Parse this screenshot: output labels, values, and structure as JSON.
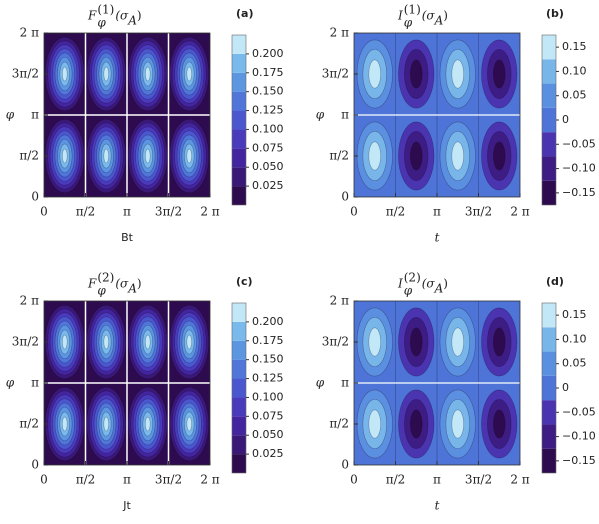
{
  "chart_data": [
    {
      "type": "contour",
      "panel_label": "(a)",
      "title": [
        "F",
        "(1)",
        "φ",
        "(σ",
        "A",
        ")"
      ],
      "xlabel": "Bt",
      "ylabel": "φ",
      "xlim": [
        0,
        6.2832
      ],
      "ylim": [
        0,
        6.2832
      ],
      "xticks": [
        0,
        {
          "value": 1.5708,
          "label": "π/2"
        },
        {
          "value": 3.1416,
          "label": "π"
        },
        {
          "value": 4.7124,
          "label": "3π/2"
        },
        {
          "value": 6.2832,
          "label": "2 π"
        }
      ],
      "yticks": [
        0,
        {
          "value": 1.5708,
          "label": "π/2"
        },
        {
          "value": 3.1416,
          "label": "π"
        },
        {
          "value": 4.7124,
          "label": "3π/2"
        },
        {
          "value": 6.2832,
          "label": "2 π"
        }
      ],
      "clim": [
        0,
        0.225
      ],
      "cticks": [
        0.025,
        {
          "value": 0.05,
          "label": "0.050"
        },
        0.075,
        {
          "value": 0.1,
          "label": "0.100"
        },
        0.125,
        {
          "value": 0.15,
          "label": "0.150"
        },
        0.175,
        {
          "value": 0.2,
          "label": "0.200"
        }
      ],
      "colors": [
        "#2d0b4e",
        "#3a1877",
        "#43259f",
        "#4a3bbd",
        "#4a57cf",
        "#4f76d8",
        "#5c96e1",
        "#7ab9eb",
        "#c2e8f8"
      ],
      "diverging": false
    },
    {
      "type": "contour",
      "panel_label": "(b)",
      "title": [
        "I",
        "(1)",
        "φ",
        "(σ",
        "A",
        ")"
      ],
      "xlabel": "t",
      "ylabel": "φ",
      "xlim": [
        0,
        6.2832
      ],
      "ylim": [
        0,
        6.2832
      ],
      "xticks": [
        0,
        {
          "value": 1.5708,
          "label": "π/2"
        },
        {
          "value": 3.1416,
          "label": "π"
        },
        {
          "value": 4.7124,
          "label": "3π/2"
        },
        {
          "value": 6.2832,
          "label": "2 π"
        }
      ],
      "yticks": [
        0,
        {
          "value": 1.5708,
          "label": "π/2"
        },
        {
          "value": 3.1416,
          "label": "π"
        },
        {
          "value": 4.7124,
          "label": "3π/2"
        },
        {
          "value": 6.2832,
          "label": "2 π"
        }
      ],
      "clim": [
        -0.175,
        0.175
      ],
      "cticks": [
        {
          "value": -0.15,
          "label": "−0.15"
        },
        {
          "value": -0.1,
          "label": "−0.10"
        },
        {
          "value": -0.05,
          "label": "−0.05"
        },
        0,
        0.05,
        {
          "value": 0.1,
          "label": "0.10"
        },
        0.15
      ],
      "colors": [
        "#2d0b4e",
        "#3d1c84",
        "#4a34b0",
        "#4d74d6",
        "#5b8fdf",
        "#78b6ea",
        "#c2e8f8"
      ],
      "diverging": true
    },
    {
      "type": "contour",
      "panel_label": "(c)",
      "title": [
        "F",
        "(2)",
        "φ",
        "(σ",
        "A",
        ")"
      ],
      "xlabel": "Jt",
      "ylabel": "φ",
      "xlim": [
        0,
        6.2832
      ],
      "ylim": [
        0,
        6.2832
      ],
      "xticks": [
        0,
        {
          "value": 1.5708,
          "label": "π/2"
        },
        {
          "value": 3.1416,
          "label": "π"
        },
        {
          "value": 4.7124,
          "label": "3π/2"
        },
        {
          "value": 6.2832,
          "label": "2 π"
        }
      ],
      "yticks": [
        0,
        {
          "value": 1.5708,
          "label": "π/2"
        },
        {
          "value": 3.1416,
          "label": "π"
        },
        {
          "value": 4.7124,
          "label": "3π/2"
        },
        {
          "value": 6.2832,
          "label": "2 π"
        }
      ],
      "clim": [
        0,
        0.225
      ],
      "cticks": [
        0.025,
        {
          "value": 0.05,
          "label": "0.050"
        },
        0.075,
        {
          "value": 0.1,
          "label": "0.100"
        },
        0.125,
        {
          "value": 0.15,
          "label": "0.150"
        },
        0.175,
        {
          "value": 0.2,
          "label": "0.200"
        }
      ],
      "colors": [
        "#2d0b4e",
        "#3a1877",
        "#43259f",
        "#4a3bbd",
        "#4a57cf",
        "#4f76d8",
        "#5c96e1",
        "#7ab9eb",
        "#c2e8f8"
      ],
      "diverging": false
    },
    {
      "type": "contour",
      "panel_label": "(d)",
      "title": [
        "I",
        "(2)",
        "φ",
        "(σ",
        "A",
        ")"
      ],
      "xlabel": "t",
      "ylabel": "φ",
      "xlim": [
        0,
        6.2832
      ],
      "ylim": [
        0,
        6.2832
      ],
      "xticks": [
        0,
        {
          "value": 1.5708,
          "label": "π/2"
        },
        {
          "value": 3.1416,
          "label": "π"
        },
        {
          "value": 4.7124,
          "label": "3π/2"
        },
        {
          "value": 6.2832,
          "label": "2 π"
        }
      ],
      "yticks": [
        0,
        {
          "value": 1.5708,
          "label": "π/2"
        },
        {
          "value": 3.1416,
          "label": "π"
        },
        {
          "value": 4.7124,
          "label": "3π/2"
        },
        {
          "value": 6.2832,
          "label": "2 π"
        }
      ],
      "clim": [
        -0.175,
        0.175
      ],
      "cticks": [
        {
          "value": -0.15,
          "label": "−0.15"
        },
        {
          "value": -0.1,
          "label": "−0.10"
        },
        {
          "value": -0.05,
          "label": "−0.05"
        },
        0,
        0.05,
        {
          "value": 0.1,
          "label": "0.10"
        },
        0.15
      ],
      "colors": [
        "#2d0b4e",
        "#3d1c84",
        "#4a34b0",
        "#4d74d6",
        "#5b8fdf",
        "#78b6ea",
        "#c2e8f8"
      ],
      "diverging": true
    }
  ]
}
